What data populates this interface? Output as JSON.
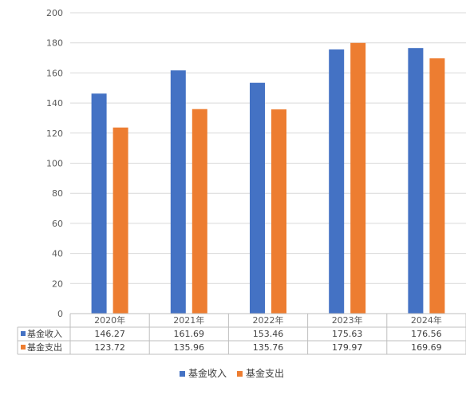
{
  "chart_data": {
    "type": "bar",
    "categories": [
      "2020年",
      "2021年",
      "2022年",
      "2023年",
      "2024年"
    ],
    "series": [
      {
        "name": "基金收入",
        "color": "#4472C4",
        "values": [
          146.27,
          161.69,
          153.46,
          175.63,
          176.56
        ],
        "labels": [
          "146.27",
          "161.69",
          "153.46",
          "175.63",
          "176.56"
        ]
      },
      {
        "name": "基金支出",
        "color": "#ED7D31",
        "values": [
          123.72,
          135.96,
          135.76,
          179.97,
          169.69
        ],
        "labels": [
          "123.72",
          "135.96",
          "135.76",
          "179.97",
          "169.69"
        ]
      }
    ],
    "ylim": [
      0,
      200
    ],
    "yticks": [
      "0",
      "20",
      "40",
      "60",
      "80",
      "100",
      "120",
      "140",
      "160",
      "180",
      "200"
    ],
    "grid": true,
    "data_table": true,
    "legend": "bottom"
  }
}
